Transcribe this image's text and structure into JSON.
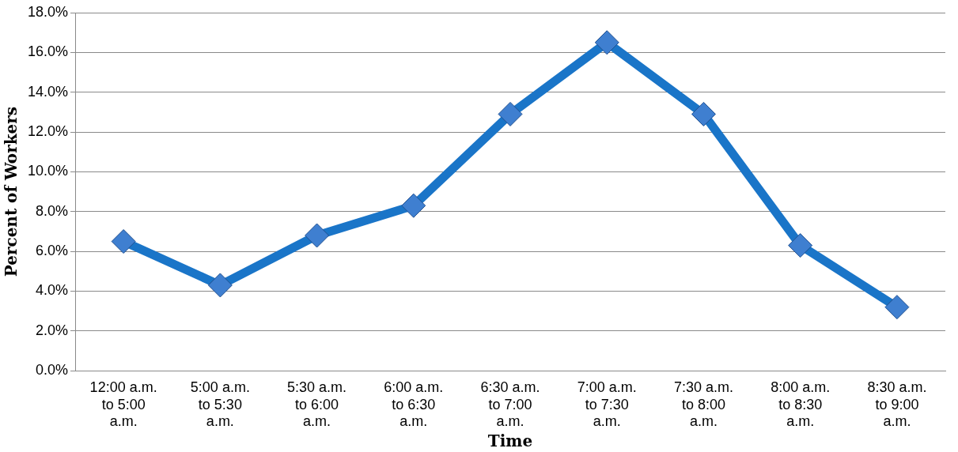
{
  "chart_data": {
    "type": "line",
    "xlabel": "Time",
    "ylabel": "Percent of Workers",
    "categories": [
      "12:00 a.m. to 5:00 a.m.",
      "5:00 a.m. to 5:30 a.m.",
      "5:30 a.m. to 6:00 a.m.",
      "6:00 a.m. to 6:30 a.m.",
      "6:30 a.m. to 7:00 a.m.",
      "7:00 a.m. to 7:30 a.m.",
      "7:30 a.m. to 8:00 a.m.",
      "8:00 a.m. to 8:30 a.m.",
      "8:30 a.m. to 9:00 a.m."
    ],
    "series": [
      {
        "color": "#1a75c8",
        "values": [
          6.5,
          4.3,
          6.8,
          8.3,
          12.9,
          16.5,
          12.9,
          6.3,
          3.2
        ]
      }
    ],
    "ylim": [
      0,
      18
    ],
    "yticks": [
      {
        "value": 0,
        "label": "0.0%"
      },
      {
        "value": 2,
        "label": "2.0%"
      },
      {
        "value": 4,
        "label": "4.0%"
      },
      {
        "value": 6,
        "label": "6.0%"
      },
      {
        "value": 8,
        "label": "8.0%"
      },
      {
        "value": 10,
        "label": "10.0%"
      },
      {
        "value": 12,
        "label": "12.0%"
      },
      {
        "value": 14,
        "label": "14.0%"
      },
      {
        "value": 16,
        "label": "16.0%"
      },
      {
        "value": 18,
        "label": "18.0%"
      }
    ],
    "grid": "y",
    "legend": false,
    "marker": "diamond",
    "line_style": "solid"
  }
}
